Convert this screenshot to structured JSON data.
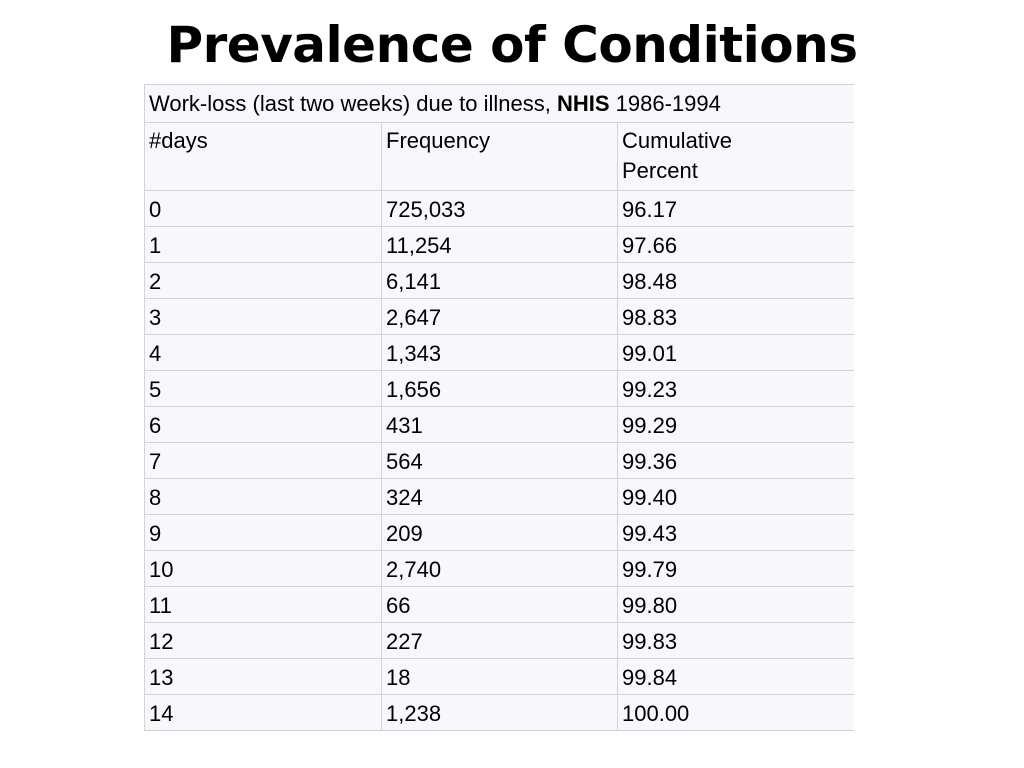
{
  "title": "Prevalence of Conditions",
  "table": {
    "caption": {
      "prefix": "Work-loss (last two weeks) due to illness,",
      "source": "NHIS",
      "years": "1986-1994"
    },
    "headers": [
      "#days",
      "Frequency",
      "Cumulative Percent"
    ],
    "rows": [
      [
        "0",
        "725,033",
        "96.17"
      ],
      [
        "1",
        "11,254",
        "97.66"
      ],
      [
        "2",
        "6,141",
        "98.48"
      ],
      [
        "3",
        "2,647",
        "98.83"
      ],
      [
        "4",
        "1,343",
        "99.01"
      ],
      [
        "5",
        "1,656",
        "99.23"
      ],
      [
        "6",
        "431",
        "99.29"
      ],
      [
        "7",
        "564",
        "99.36"
      ],
      [
        "8",
        "324",
        "99.40"
      ],
      [
        "9",
        "209",
        "99.43"
      ],
      [
        "10",
        "2,740",
        "99.79"
      ],
      [
        "11",
        "66",
        "99.80"
      ],
      [
        "12",
        "227",
        "99.83"
      ],
      [
        "13",
        "18",
        "99.84"
      ],
      [
        "14",
        "1,238",
        "100.00"
      ]
    ]
  }
}
